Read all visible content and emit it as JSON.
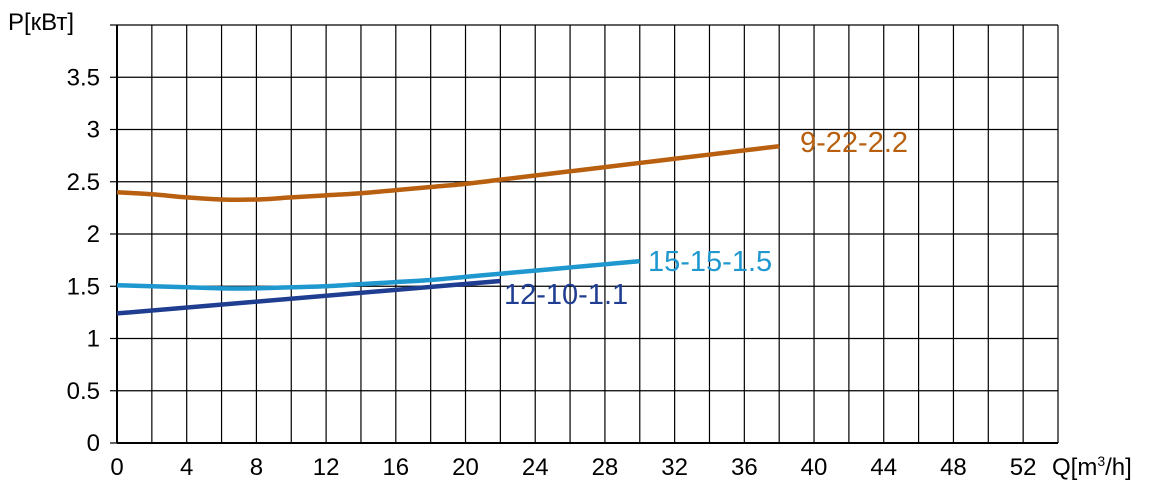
{
  "chart_data": {
    "type": "line",
    "y_axis_label": "P[кВт]",
    "x_axis_label_main": "Q[m",
    "x_axis_label_sup": "3",
    "x_axis_label_end": "/h]",
    "xlim": [
      0,
      54
    ],
    "ylim": [
      0,
      4
    ],
    "x_grid_step": 2,
    "y_grid_step": 0.5,
    "grid": true,
    "x_ticks": [
      "0",
      "4",
      "8",
      "12",
      "16",
      "20",
      "24",
      "28",
      "32",
      "36",
      "40",
      "44",
      "48",
      "52"
    ],
    "x_tick_values": [
      0,
      4,
      8,
      12,
      16,
      20,
      24,
      28,
      32,
      36,
      40,
      44,
      48,
      52
    ],
    "y_ticks": [
      "0",
      "0.5",
      "1",
      "1.5",
      "2",
      "2.5",
      "3",
      "3.5"
    ],
    "y_tick_values": [
      0,
      0.5,
      1,
      1.5,
      2,
      2.5,
      3,
      3.5
    ],
    "series": [
      {
        "name": "9-22-2.2",
        "color": "#b8600f",
        "x": [
          0,
          2,
          4,
          6,
          8,
          10,
          12,
          14,
          16,
          18,
          20,
          22,
          24,
          26,
          28,
          30,
          32,
          34,
          36,
          38
        ],
        "y": [
          2.4,
          2.38,
          2.35,
          2.33,
          2.33,
          2.35,
          2.37,
          2.39,
          2.42,
          2.45,
          2.48,
          2.52,
          2.56,
          2.6,
          2.64,
          2.68,
          2.72,
          2.76,
          2.8,
          2.84
        ]
      },
      {
        "name": "15-15-1.5",
        "color": "#1f97cf",
        "x": [
          0,
          2,
          4,
          6,
          8,
          10,
          12,
          14,
          16,
          18,
          20,
          22,
          24,
          26,
          28,
          30
        ],
        "y": [
          1.51,
          1.5,
          1.49,
          1.48,
          1.48,
          1.49,
          1.5,
          1.52,
          1.54,
          1.56,
          1.59,
          1.62,
          1.65,
          1.68,
          1.71,
          1.74
        ]
      },
      {
        "name": "12-10-1.1",
        "color": "#1f3d91",
        "x": [
          0,
          22
        ],
        "y": [
          1.24,
          1.55
        ]
      }
    ]
  }
}
